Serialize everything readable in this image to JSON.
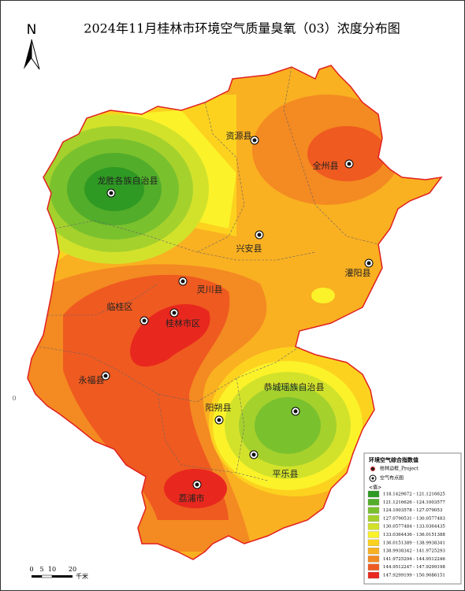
{
  "title": "2024年11月桂林市环境空气质量臭氧（03）浓度分布图",
  "north": "N",
  "edge_label": "0",
  "counties": [
    {
      "label": "资源县"
    },
    {
      "label": "全州县"
    },
    {
      "label": "龙胜各族自治县"
    },
    {
      "label": "兴安县"
    },
    {
      "label": "灌阳县"
    },
    {
      "label": "灵川县"
    },
    {
      "label": "临桂区"
    },
    {
      "label": "桂林市区"
    },
    {
      "label": "永福县"
    },
    {
      "label": "恭城瑶族自治县"
    },
    {
      "label": "阳朔县"
    },
    {
      "label": "平乐县"
    },
    {
      "label": "荔浦市"
    }
  ],
  "legend": {
    "title": "环境空气综合指数值",
    "boundary_label": "桂林边框_Project",
    "station_label": "空气布点图",
    "value_label": "<值>",
    "classes": [
      {
        "label": "118.1429672 - 121.1216625",
        "color": "#2f9a23"
      },
      {
        "label": "121.1216626 - 124.1003577",
        "color": "#52ad2a"
      },
      {
        "label": "124.1003578 - 127.079053",
        "color": "#7ac12e"
      },
      {
        "label": "127.0790531 - 130.0577483",
        "color": "#a5d12d"
      },
      {
        "label": "130.0577484 - 133.0364435",
        "color": "#d2e22b"
      },
      {
        "label": "133.0364436 - 136.0151388",
        "color": "#fbf22a"
      },
      {
        "label": "136.0151389 - 138.9938341",
        "color": "#fcd21f"
      },
      {
        "label": "138.9938342 - 141.9725293",
        "color": "#f9b021"
      },
      {
        "label": "141.9725294 - 144.9512246",
        "color": "#f48a22"
      },
      {
        "label": "144.9512247 - 147.9299198",
        "color": "#ef5a20"
      },
      {
        "label": "147.9299199 - 150.9086151",
        "color": "#e8281e"
      }
    ]
  },
  "scale_bar": {
    "ticks": [
      "0",
      "5",
      "10",
      "20"
    ],
    "unit": "千米"
  }
}
